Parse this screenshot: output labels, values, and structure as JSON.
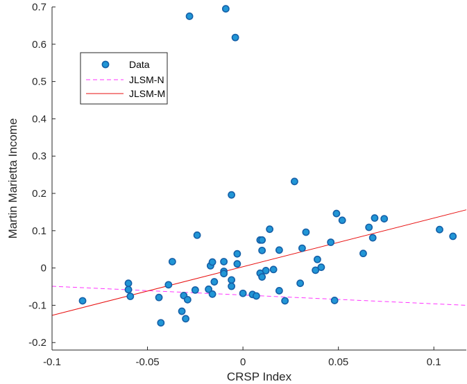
{
  "chart_data": {
    "type": "scatter",
    "xlabel": "CRSP Index",
    "ylabel": "Martin Marietta Income",
    "xlim": [
      -0.1,
      0.117
    ],
    "ylim": [
      -0.22,
      0.7
    ],
    "xticks": [
      -0.1,
      -0.05,
      0,
      0.05,
      0.1
    ],
    "xtick_labels": [
      "-0.1",
      "-0.05",
      "0",
      "0.05",
      "0.1"
    ],
    "yticks": [
      -0.2,
      -0.1,
      0,
      0.1,
      0.2,
      0.3,
      0.4,
      0.5,
      0.6,
      0.7
    ],
    "ytick_labels": [
      "-0.2",
      "-0.1",
      "0",
      "0.1",
      "0.2",
      "0.3",
      "0.4",
      "0.5",
      "0.6",
      "0.7"
    ],
    "grid": false,
    "legend_position": "top-left",
    "colors": {
      "marker_fill": "#2196d6",
      "marker_edge": "#1560a8",
      "jlsm_n": "#ff33ff",
      "jlsm_m": "#e81010",
      "axis": "#262626"
    },
    "series": [
      {
        "name": "Data",
        "style": "markers",
        "points": [
          [
            -0.084,
            -0.088
          ],
          [
            -0.06,
            -0.041
          ],
          [
            -0.06,
            -0.058
          ],
          [
            -0.059,
            -0.076
          ],
          [
            -0.044,
            -0.079
          ],
          [
            -0.043,
            -0.147
          ],
          [
            -0.039,
            -0.045
          ],
          [
            -0.037,
            0.017
          ],
          [
            -0.032,
            -0.116
          ],
          [
            -0.031,
            -0.074
          ],
          [
            -0.03,
            -0.136
          ],
          [
            -0.029,
            -0.085
          ],
          [
            -0.028,
            0.675
          ],
          [
            -0.025,
            -0.059
          ],
          [
            -0.024,
            0.088
          ],
          [
            -0.018,
            -0.057
          ],
          [
            -0.017,
            0.006
          ],
          [
            -0.016,
            0.016
          ],
          [
            -0.016,
            -0.07
          ],
          [
            -0.015,
            -0.037
          ],
          [
            -0.01,
            0.017
          ],
          [
            -0.01,
            -0.009
          ],
          [
            -0.01,
            -0.015
          ],
          [
            -0.009,
            0.695
          ],
          [
            -0.006,
            -0.032
          ],
          [
            -0.006,
            -0.049
          ],
          [
            -0.006,
            0.196
          ],
          [
            -0.004,
            0.618
          ],
          [
            -0.003,
            0.038
          ],
          [
            -0.003,
            0.011
          ],
          [
            0.0,
            -0.068
          ],
          [
            0.005,
            -0.071
          ],
          [
            0.007,
            -0.075
          ],
          [
            0.009,
            -0.014
          ],
          [
            0.009,
            0.075
          ],
          [
            0.01,
            -0.024
          ],
          [
            0.01,
            0.047
          ],
          [
            0.01,
            0.075
          ],
          [
            0.012,
            -0.007
          ],
          [
            0.014,
            0.104
          ],
          [
            0.016,
            -0.004
          ],
          [
            0.019,
            -0.061
          ],
          [
            0.019,
            0.048
          ],
          [
            0.022,
            -0.088
          ],
          [
            0.027,
            0.232
          ],
          [
            0.03,
            -0.041
          ],
          [
            0.031,
            0.053
          ],
          [
            0.033,
            0.096
          ],
          [
            0.038,
            -0.006
          ],
          [
            0.039,
            0.023
          ],
          [
            0.041,
            0.002
          ],
          [
            0.046,
            0.069
          ],
          [
            0.048,
            -0.087
          ],
          [
            0.049,
            0.146
          ],
          [
            0.052,
            0.128
          ],
          [
            0.063,
            0.039
          ],
          [
            0.066,
            0.109
          ],
          [
            0.068,
            0.081
          ],
          [
            0.069,
            0.134
          ],
          [
            0.074,
            0.132
          ],
          [
            0.103,
            0.103
          ],
          [
            0.11,
            0.085
          ]
        ]
      },
      {
        "name": "JLSM-N",
        "style": "dashed-line",
        "points": [
          [
            -0.1,
            -0.049
          ],
          [
            0.117,
            -0.1
          ]
        ]
      },
      {
        "name": "JLSM-M",
        "style": "solid-line",
        "points": [
          [
            -0.1,
            -0.127
          ],
          [
            0.117,
            0.156
          ]
        ]
      }
    ]
  }
}
